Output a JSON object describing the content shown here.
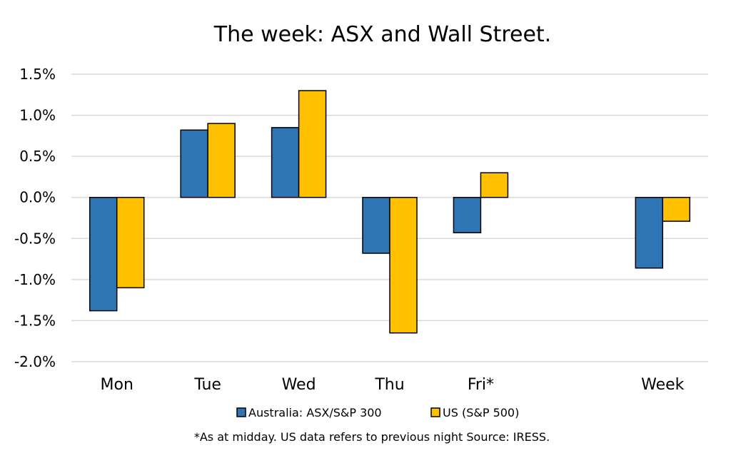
{
  "chart_data": {
    "type": "bar",
    "title": "The week:  ASX and Wall Street.",
    "categories": [
      "Mon",
      "Tue",
      "Wed",
      "Thu",
      "Fri*",
      "",
      "Week"
    ],
    "series": [
      {
        "name": "Australia: ASX/S&P 300",
        "color": "#2e75b6",
        "values": [
          -1.38,
          0.82,
          0.85,
          -0.68,
          -0.43,
          null,
          -0.86
        ]
      },
      {
        "name": "US (S&P 500)",
        "color": "#ffc000",
        "values": [
          -1.1,
          0.9,
          1.3,
          -1.65,
          0.3,
          null,
          -0.29
        ]
      }
    ],
    "ylim": [
      -2.0,
      1.5
    ],
    "yticks": [
      "1.5%",
      "1.0%",
      "0.5%",
      "0.0%",
      "-0.5%",
      "-1.0%",
      "-1.5%",
      "-2.0%"
    ],
    "ytick_values": [
      1.5,
      1.0,
      0.5,
      0.0,
      -0.5,
      -1.0,
      -1.5,
      -2.0
    ],
    "grid": true,
    "legend_position": "bottom",
    "footnote": "*As at midday. US data refers to previous night  Source:  IRESS."
  }
}
